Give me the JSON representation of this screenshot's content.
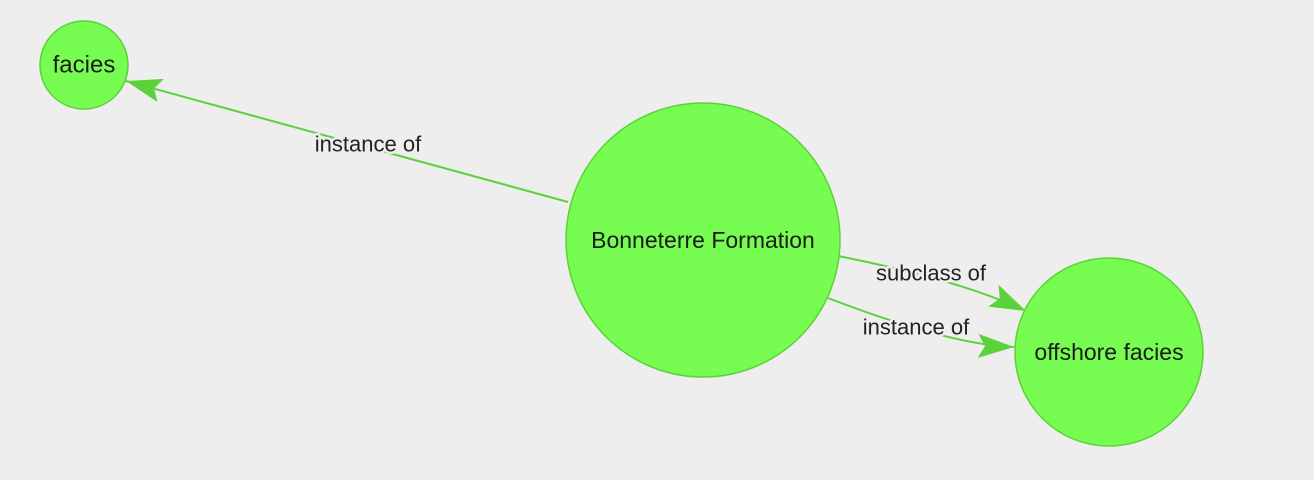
{
  "colors": {
    "background": "#eeeeee",
    "node_fill": "#77fc51",
    "node_stroke": "#5bd23a",
    "edge": "#5bd23a",
    "text": "#1a1a1a"
  },
  "nodes": [
    {
      "id": "facies",
      "label": "facies"
    },
    {
      "id": "bonneterre",
      "label": "Bonneterre Formation"
    },
    {
      "id": "offshore",
      "label": "offshore facies"
    }
  ],
  "edges": [
    {
      "id": "e1",
      "source": "bonneterre",
      "target": "facies",
      "label": "instance of"
    },
    {
      "id": "e2",
      "source": "bonneterre",
      "target": "offshore",
      "label": "subclass of"
    },
    {
      "id": "e3",
      "source": "bonneterre",
      "target": "offshore",
      "label": "instance of"
    }
  ]
}
